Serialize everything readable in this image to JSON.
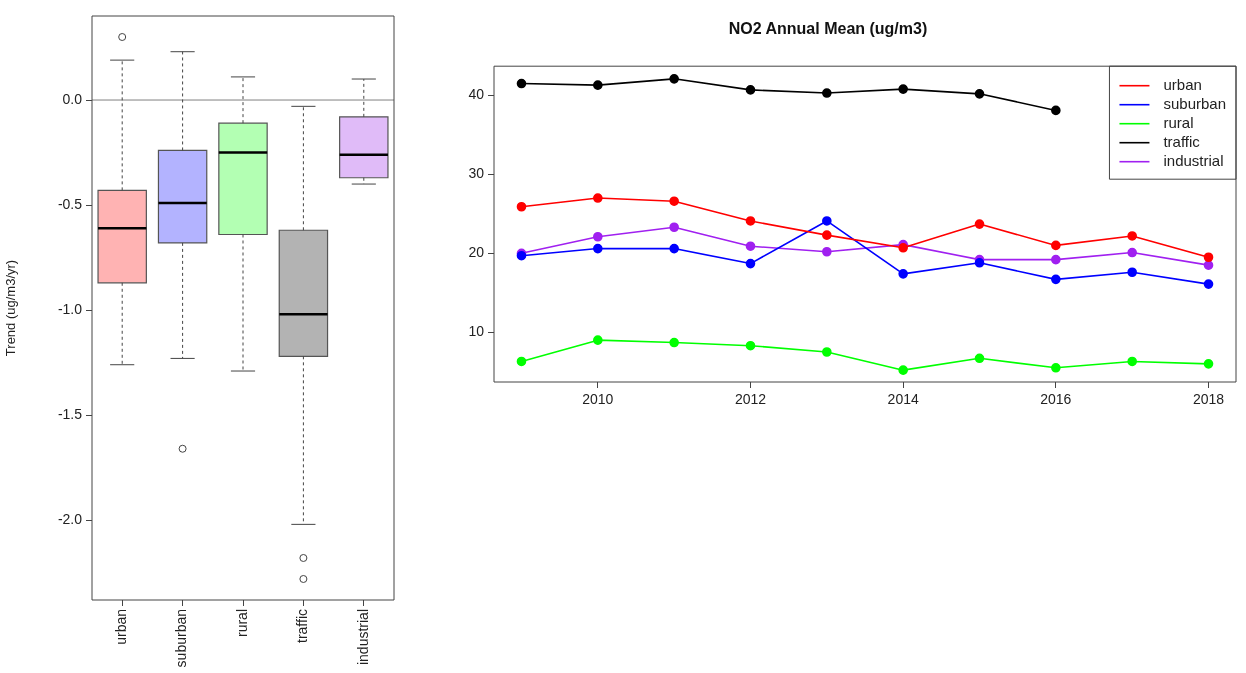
{
  "chart_data": [
    {
      "type": "box",
      "ylabel": "Trend (ug/m3/yr)",
      "categories": [
        "urban",
        "suburban",
        "rural",
        "traffic",
        "industrial"
      ],
      "colors": [
        "#ffb3b3",
        "#b3b3ff",
        "#b3ffb3",
        "#b3b3b3",
        "#e0bbf8"
      ],
      "boxes": [
        {
          "low": -1.26,
          "q1": -0.87,
          "median": -0.61,
          "q3": -0.43,
          "high": 0.19,
          "outliers": [
            0.3
          ]
        },
        {
          "low": -1.23,
          "q1": -0.68,
          "median": -0.49,
          "q3": -0.24,
          "high": 0.23,
          "outliers": [
            -1.66
          ]
        },
        {
          "low": -1.29,
          "q1": -0.64,
          "median": -0.25,
          "q3": -0.11,
          "high": 0.11
        },
        {
          "low": -2.02,
          "q1": -1.22,
          "median": -1.02,
          "q3": -0.62,
          "high": -0.03,
          "outliers": [
            -2.18,
            -2.28
          ]
        },
        {
          "low": -0.4,
          "q1": -0.37,
          "median": -0.26,
          "q3": -0.08,
          "high": 0.1
        }
      ],
      "ylim": [
        -2.38,
        0.4
      ],
      "yticks": [
        {
          "value": -2,
          "label": "-2.0"
        },
        -1.5,
        {
          "value": -1,
          "label": "-1.0"
        },
        -0.5,
        {
          "value": 0,
          "label": "0.0"
        }
      ],
      "ref_lines": [
        {
          "axis": "y",
          "value": 0,
          "color": "#808080"
        }
      ],
      "grid": false
    },
    {
      "type": "line",
      "title": "NO2 Annual Mean (ug/m3)",
      "x": [
        2009,
        2010,
        2011,
        2012,
        2013,
        2014,
        2015,
        2016,
        2017,
        2018
      ],
      "xlim": [
        2008.64,
        2018.36
      ],
      "xticks": [
        2010,
        2012,
        2014,
        2016,
        2018
      ],
      "ylim": [
        3.7,
        43.7
      ],
      "yticks": [
        10,
        20,
        30,
        40
      ],
      "series": [
        {
          "name": "urban",
          "color": "#ff0000",
          "values": [
            25.9,
            27.0,
            26.6,
            24.1,
            22.3,
            20.7,
            23.7,
            21.0,
            22.2,
            19.5
          ]
        },
        {
          "name": "suburban",
          "color": "#0000ff",
          "values": [
            19.7,
            20.6,
            20.6,
            18.7,
            24.1,
            17.4,
            18.8,
            16.7,
            17.6,
            16.1
          ]
        },
        {
          "name": "rural",
          "color": "#00ff00",
          "values": [
            6.3,
            9.0,
            8.7,
            8.3,
            7.5,
            5.2,
            6.7,
            5.5,
            6.3,
            6.0
          ]
        },
        {
          "name": "traffic",
          "color": "#000000",
          "values": [
            41.5,
            41.3,
            42.1,
            40.7,
            40.3,
            40.8,
            40.2,
            38.1,
            null,
            null
          ]
        },
        {
          "name": "industrial",
          "color": "#a020f0",
          "values": [
            20.0,
            22.1,
            23.3,
            20.9,
            20.2,
            21.1,
            19.2,
            19.2,
            20.1,
            18.5
          ]
        }
      ],
      "legend": "top right",
      "marker": "circle",
      "grid": false
    }
  ]
}
